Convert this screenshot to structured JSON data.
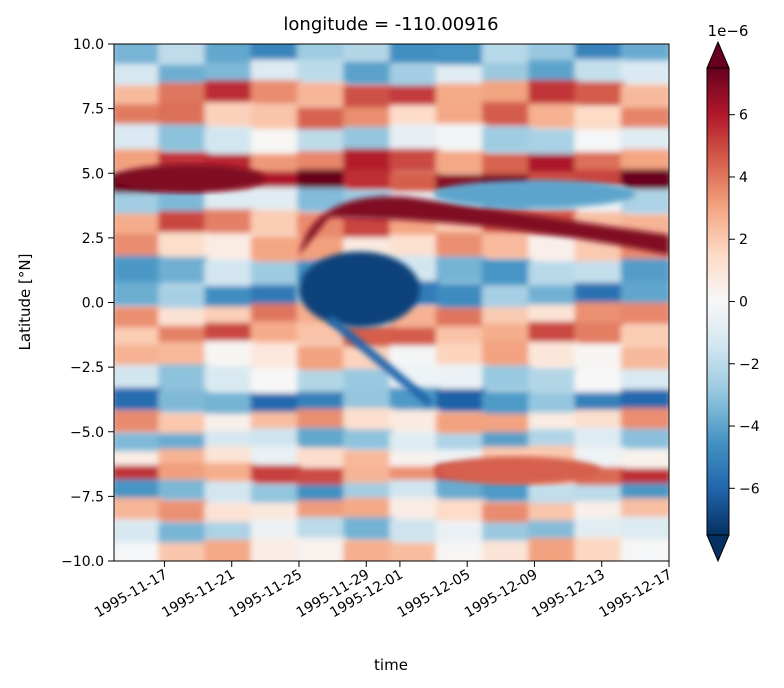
{
  "chart_data": {
    "type": "heatmap",
    "title": "longitude = -110.00916",
    "xlabel": "time",
    "ylabel": "Latitude [°N]",
    "x_ticks": [
      "1995-11-17",
      "1995-11-21",
      "1995-11-25",
      "1995-11-29",
      "1995-12-01",
      "1995-12-05",
      "1995-12-09",
      "1995-12-13",
      "1995-12-17"
    ],
    "y_ticks": [
      "−10.0",
      "−7.5",
      "−5.0",
      "−2.5",
      "0.0",
      "2.5",
      "5.0",
      "7.5",
      "10.0"
    ],
    "ylim": [
      -10.0,
      10.0
    ],
    "xlim": [
      "1995-11-14",
      "1995-12-17"
    ],
    "colorbar": {
      "colormap": "RdBu_r",
      "offset_label": "1e−6",
      "ticks": [
        "−6",
        "−4",
        "−2",
        "0",
        "2",
        "4",
        "6"
      ],
      "tick_values": [
        -6,
        -4,
        -2,
        0,
        2,
        4,
        6
      ],
      "range": [
        -7.5,
        7.5
      ],
      "extend": "both",
      "colors": [
        "#053061",
        "#2166ac",
        "#4393c3",
        "#92c5de",
        "#d1e5f0",
        "#f7f7f7",
        "#fddbc7",
        "#f4a582",
        "#d6604d",
        "#b2182b",
        "#67001f"
      ]
    },
    "bands": [
      {
        "lat": 9.6,
        "value": -3.5
      },
      {
        "lat": 9.0,
        "value": -2.5
      },
      {
        "lat": 8.0,
        "value": 4.0
      },
      {
        "lat": 7.3,
        "value": 3.0
      },
      {
        "lat": 6.3,
        "value": -1.5
      },
      {
        "lat": 5.4,
        "value": 4.5
      },
      {
        "lat": 4.7,
        "value": 6.0
      },
      {
        "lat": 4.0,
        "value": -2.0
      },
      {
        "lat": 3.0,
        "value": 3.5
      },
      {
        "lat": 2.2,
        "value": 2.0
      },
      {
        "lat": 1.2,
        "value": -3.0
      },
      {
        "lat": 0.3,
        "value": -4.0
      },
      {
        "lat": -0.5,
        "value": 2.5
      },
      {
        "lat": -1.2,
        "value": 3.5
      },
      {
        "lat": -2.0,
        "value": 1.5
      },
      {
        "lat": -3.0,
        "value": -1.5
      },
      {
        "lat": -3.8,
        "value": -4.5
      },
      {
        "lat": -4.6,
        "value": 2.0
      },
      {
        "lat": -5.3,
        "value": -2.5
      },
      {
        "lat": -6.0,
        "value": 1.0
      },
      {
        "lat": -6.6,
        "value": 4.0
      },
      {
        "lat": -7.3,
        "value": -3.0
      },
      {
        "lat": -8.0,
        "value": 2.0
      },
      {
        "lat": -8.8,
        "value": -2.0
      },
      {
        "lat": -9.6,
        "value": 1.5
      }
    ],
    "features": [
      {
        "kind": "warm-arc",
        "from": "1995-11-25",
        "to": "1995-12-17",
        "lat": 3.0,
        "value": 7.0
      },
      {
        "kind": "cold-lobe",
        "from": "1995-11-25",
        "to": "1995-12-01",
        "lat": 0.5,
        "value": -7.0
      },
      {
        "kind": "warm-band",
        "from": "1995-11-14",
        "to": "1995-11-23",
        "lat": 4.8,
        "value": 7.0
      },
      {
        "kind": "warm-patch",
        "from": "1995-12-03",
        "to": "1995-12-13",
        "lat": -6.5,
        "value": 4.5
      },
      {
        "kind": "cold-patch",
        "from": "1995-12-03",
        "to": "1995-12-15",
        "lat": 4.2,
        "value": -4.0
      },
      {
        "kind": "cold-streak",
        "from": "1995-11-27",
        "to": "1995-12-03",
        "lat": -3.8,
        "value": -6.0
      }
    ]
  }
}
